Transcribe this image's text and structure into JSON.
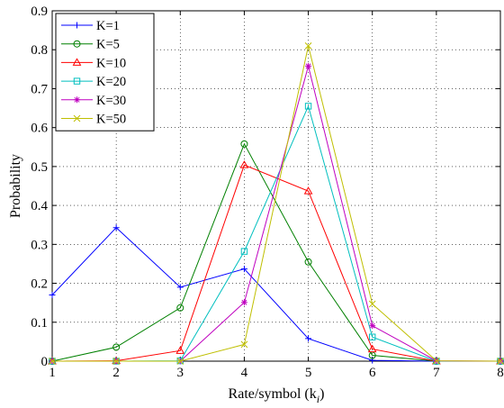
{
  "chart_data": {
    "type": "line",
    "xlabel": "Rate/symbol (k",
    "xlabel_sub": "i",
    "xlabel_close": ")",
    "ylabel": "Probability",
    "xlim": [
      1,
      8
    ],
    "ylim": [
      0,
      0.9
    ],
    "x_ticks": [
      1,
      2,
      3,
      4,
      5,
      6,
      7,
      8
    ],
    "y_ticks": [
      0,
      0.1,
      0.2,
      0.3,
      0.4,
      0.5,
      0.6,
      0.7,
      0.8,
      0.9
    ],
    "x_tick_labels": [
      "1",
      "2",
      "3",
      "4",
      "5",
      "6",
      "7",
      "8"
    ],
    "y_tick_labels": [
      "0",
      "0.1",
      "0.2",
      "0.3",
      "0.4",
      "0.5",
      "0.6",
      "0.7",
      "0.8",
      "0.9"
    ],
    "grid": true,
    "legend_position": "top-left",
    "x": [
      1,
      2,
      3,
      4,
      5,
      6,
      7,
      8
    ],
    "series": [
      {
        "name": "K=1",
        "color": "#0000ff",
        "marker": "plus",
        "values": [
          0.17,
          0.343,
          0.19,
          0.237,
          0.058,
          0.002,
          0.0,
          0.0
        ]
      },
      {
        "name": "K=5",
        "color": "#008000",
        "marker": "circle",
        "values": [
          0.0,
          0.036,
          0.137,
          0.558,
          0.255,
          0.015,
          0.0,
          0.0
        ]
      },
      {
        "name": "K=10",
        "color": "#ff0000",
        "marker": "triangle",
        "values": [
          0.0,
          0.001,
          0.027,
          0.504,
          0.437,
          0.031,
          0.0,
          0.0
        ]
      },
      {
        "name": "K=20",
        "color": "#00bfbf",
        "marker": "square",
        "values": [
          0.0,
          0.0,
          0.001,
          0.282,
          0.655,
          0.062,
          0.0,
          0.0
        ]
      },
      {
        "name": "K=30",
        "color": "#bf00bf",
        "marker": "star",
        "values": [
          0.0,
          0.0,
          0.0,
          0.151,
          0.758,
          0.091,
          0.001,
          0.0
        ]
      },
      {
        "name": "K=50",
        "color": "#bfbf00",
        "marker": "x",
        "values": [
          0.0,
          0.0,
          0.0,
          0.043,
          0.81,
          0.147,
          0.001,
          0.0
        ]
      }
    ]
  }
}
